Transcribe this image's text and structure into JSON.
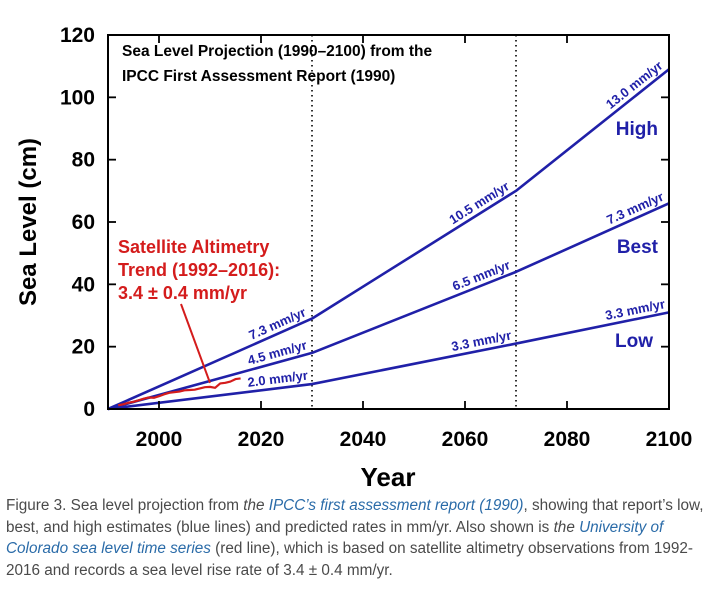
{
  "chart_data": {
    "type": "line",
    "title_lines": [
      "Sea Level Projection (1990–2100) from the",
      "IPCC First Assessment Report (1990)"
    ],
    "xlabel": "Year",
    "ylabel": "Sea Level (cm)",
    "xlim": [
      1990,
      2100
    ],
    "ylim": [
      0,
      120
    ],
    "xticks": [
      2000,
      2020,
      2040,
      2060,
      2080,
      2100
    ],
    "yticks": [
      0,
      20,
      40,
      60,
      80,
      100,
      120
    ],
    "reference_lines_x": [
      2030,
      2070
    ],
    "colors": {
      "projection": "#2020a8",
      "satellite": "#d41c1c",
      "axis": "#000000"
    },
    "series": [
      {
        "key": "high",
        "name": "High",
        "x": [
          1990,
          2030,
          2070,
          2100
        ],
        "y": [
          0,
          29,
          70,
          109
        ],
        "rates": [
          "7.3 mm/yr",
          "10.5 mm/yr",
          "13.0 mm/yr"
        ]
      },
      {
        "key": "best",
        "name": "Best",
        "x": [
          1990,
          2030,
          2070,
          2100
        ],
        "y": [
          0,
          18,
          44,
          66
        ],
        "rates": [
          "4.5 mm/yr",
          "6.5 mm/yr",
          "7.3 mm/yr"
        ]
      },
      {
        "key": "low",
        "name": "Low",
        "x": [
          1990,
          2030,
          2070,
          2100
        ],
        "y": [
          0,
          8,
          21,
          31
        ],
        "rates": [
          "2.0 mm/yr",
          "3.3 mm/yr",
          "3.3 mm/yr"
        ]
      }
    ],
    "satellite": {
      "label_lines": [
        "Satellite Altimetry",
        "Trend (1992–2016):",
        "3.4 ± 0.4 mm/yr"
      ],
      "x": [
        1992,
        1993,
        1994,
        1995,
        1996,
        1997,
        1998,
        1999,
        2000,
        2001,
        2002,
        2003,
        2004,
        2005,
        2006,
        2007,
        2008,
        2009,
        2010,
        2011,
        2012,
        2013,
        2014,
        2015,
        2016
      ],
      "y": [
        1.2,
        1.5,
        2.0,
        2.3,
        2.8,
        3.3,
        3.7,
        3.6,
        4.1,
        4.7,
        5.2,
        5.4,
        5.6,
        6.0,
        6.1,
        6.2,
        6.6,
        7.0,
        7.1,
        6.8,
        8.2,
        8.4,
        8.8,
        9.6,
        9.8
      ]
    }
  },
  "caption": {
    "t1": "Figure 3. Sea level projection from ",
    "t2": "the ",
    "link1": "IPCC’s first assessment report (1990)",
    "t3": ", showing that report’s low, best, and high estimates (blue lines) and predicted rates in mm/yr. Also shown is ",
    "t4": "the ",
    "link2": "University of Colorado sea level time series",
    "t5": " (red line), which is based on satellite altimetry observations from 1992-2016 and records a sea level rise rate of 3.4 ± 0.4 mm/yr."
  }
}
